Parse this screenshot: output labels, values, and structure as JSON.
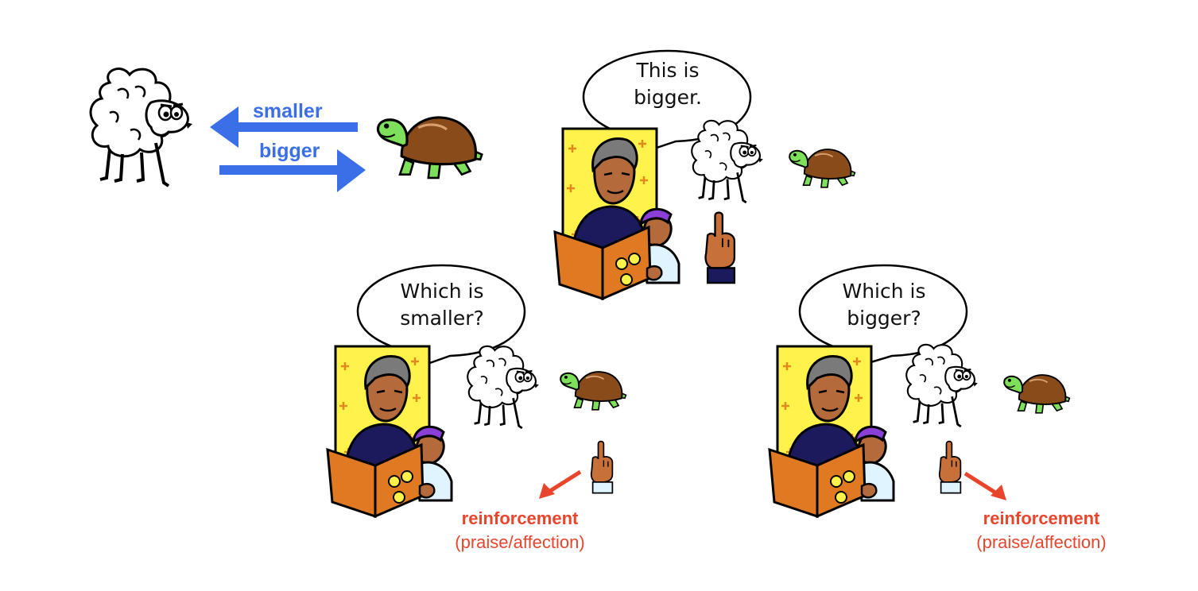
{
  "relation": {
    "smaller_label": "smaller",
    "bigger_label": "bigger",
    "arrow_color": "#3b6fe8"
  },
  "panels": [
    {
      "id": "demonstration",
      "bubble_line1": "This is",
      "bubble_line2": "bigger."
    },
    {
      "id": "smaller-trial",
      "bubble_line1": "Which is",
      "bubble_line2": "smaller?",
      "reinforcement": "reinforcement",
      "reinforcement_note": "(praise/affection)"
    },
    {
      "id": "bigger-trial",
      "bubble_line1": "Which is",
      "bubble_line2": "bigger?",
      "reinforcement": "reinforcement",
      "reinforcement_note": "(praise/affection)"
    }
  ],
  "colors": {
    "reinforcement": "#e8452c",
    "book": "#e07a22",
    "backdrop": "#fff24a",
    "turtle_shell": "#8a4b1a",
    "turtle_body": "#7ee05a",
    "cap": "#8a3fd6"
  },
  "icons": [
    "sheep-icon",
    "turtle-icon",
    "pointing-hand-icon",
    "reader-icon",
    "speech-bubble-icon",
    "arrow-icon"
  ]
}
